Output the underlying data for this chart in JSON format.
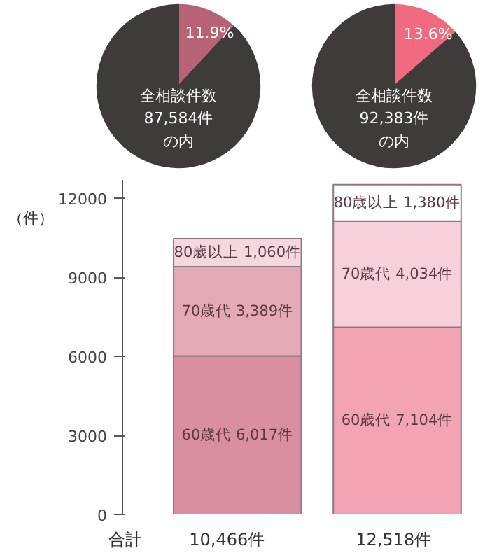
{
  "chart_data": [
    {
      "type": "pie",
      "categories": [
        null,
        null
      ],
      "values": [
        11.9,
        88.1
      ],
      "colors": [
        "#b86275",
        "#3f3b3b"
      ],
      "value_labels": [
        "11.9%",
        null
      ],
      "annotations": [
        "全相談件数",
        "87,584件",
        "の内"
      ]
    },
    {
      "type": "pie",
      "categories": [
        null,
        null
      ],
      "values": [
        13.6,
        86.4
      ],
      "colors": [
        "#f06a80",
        "#3f3b3b"
      ],
      "value_labels": [
        "13.6%",
        null
      ],
      "annotations": [
        "全相談件数",
        "92,383件",
        "の内"
      ]
    },
    {
      "type": "bar",
      "stacked": true,
      "categories": [
        null,
        null
      ],
      "ylabel": "（件）",
      "ylim": [
        0,
        12700
      ],
      "yticks": [
        0,
        3000,
        6000,
        9000,
        12000
      ],
      "series": [
        {
          "name": "60歳代",
          "colors": [
            "#d98f9f",
            "#f2a3b4"
          ],
          "values": [
            6017,
            7104
          ],
          "value_labels": [
            "6,017件",
            "7,104件"
          ]
        },
        {
          "name": "70歳代",
          "colors": [
            "#e3aab6",
            "#f8d0d9"
          ],
          "values": [
            3389,
            4034
          ],
          "value_labels": [
            "3,389件",
            "4,034件"
          ]
        },
        {
          "name": "80歳以上",
          "colors": [
            "#f4d8de",
            "#ffffff"
          ],
          "values": [
            1060,
            1380
          ],
          "value_labels": [
            "1,060件",
            "1,380件"
          ]
        }
      ],
      "totals": [
        "10,466件",
        "12,518件"
      ],
      "annotations": [
        "合計"
      ]
    }
  ]
}
